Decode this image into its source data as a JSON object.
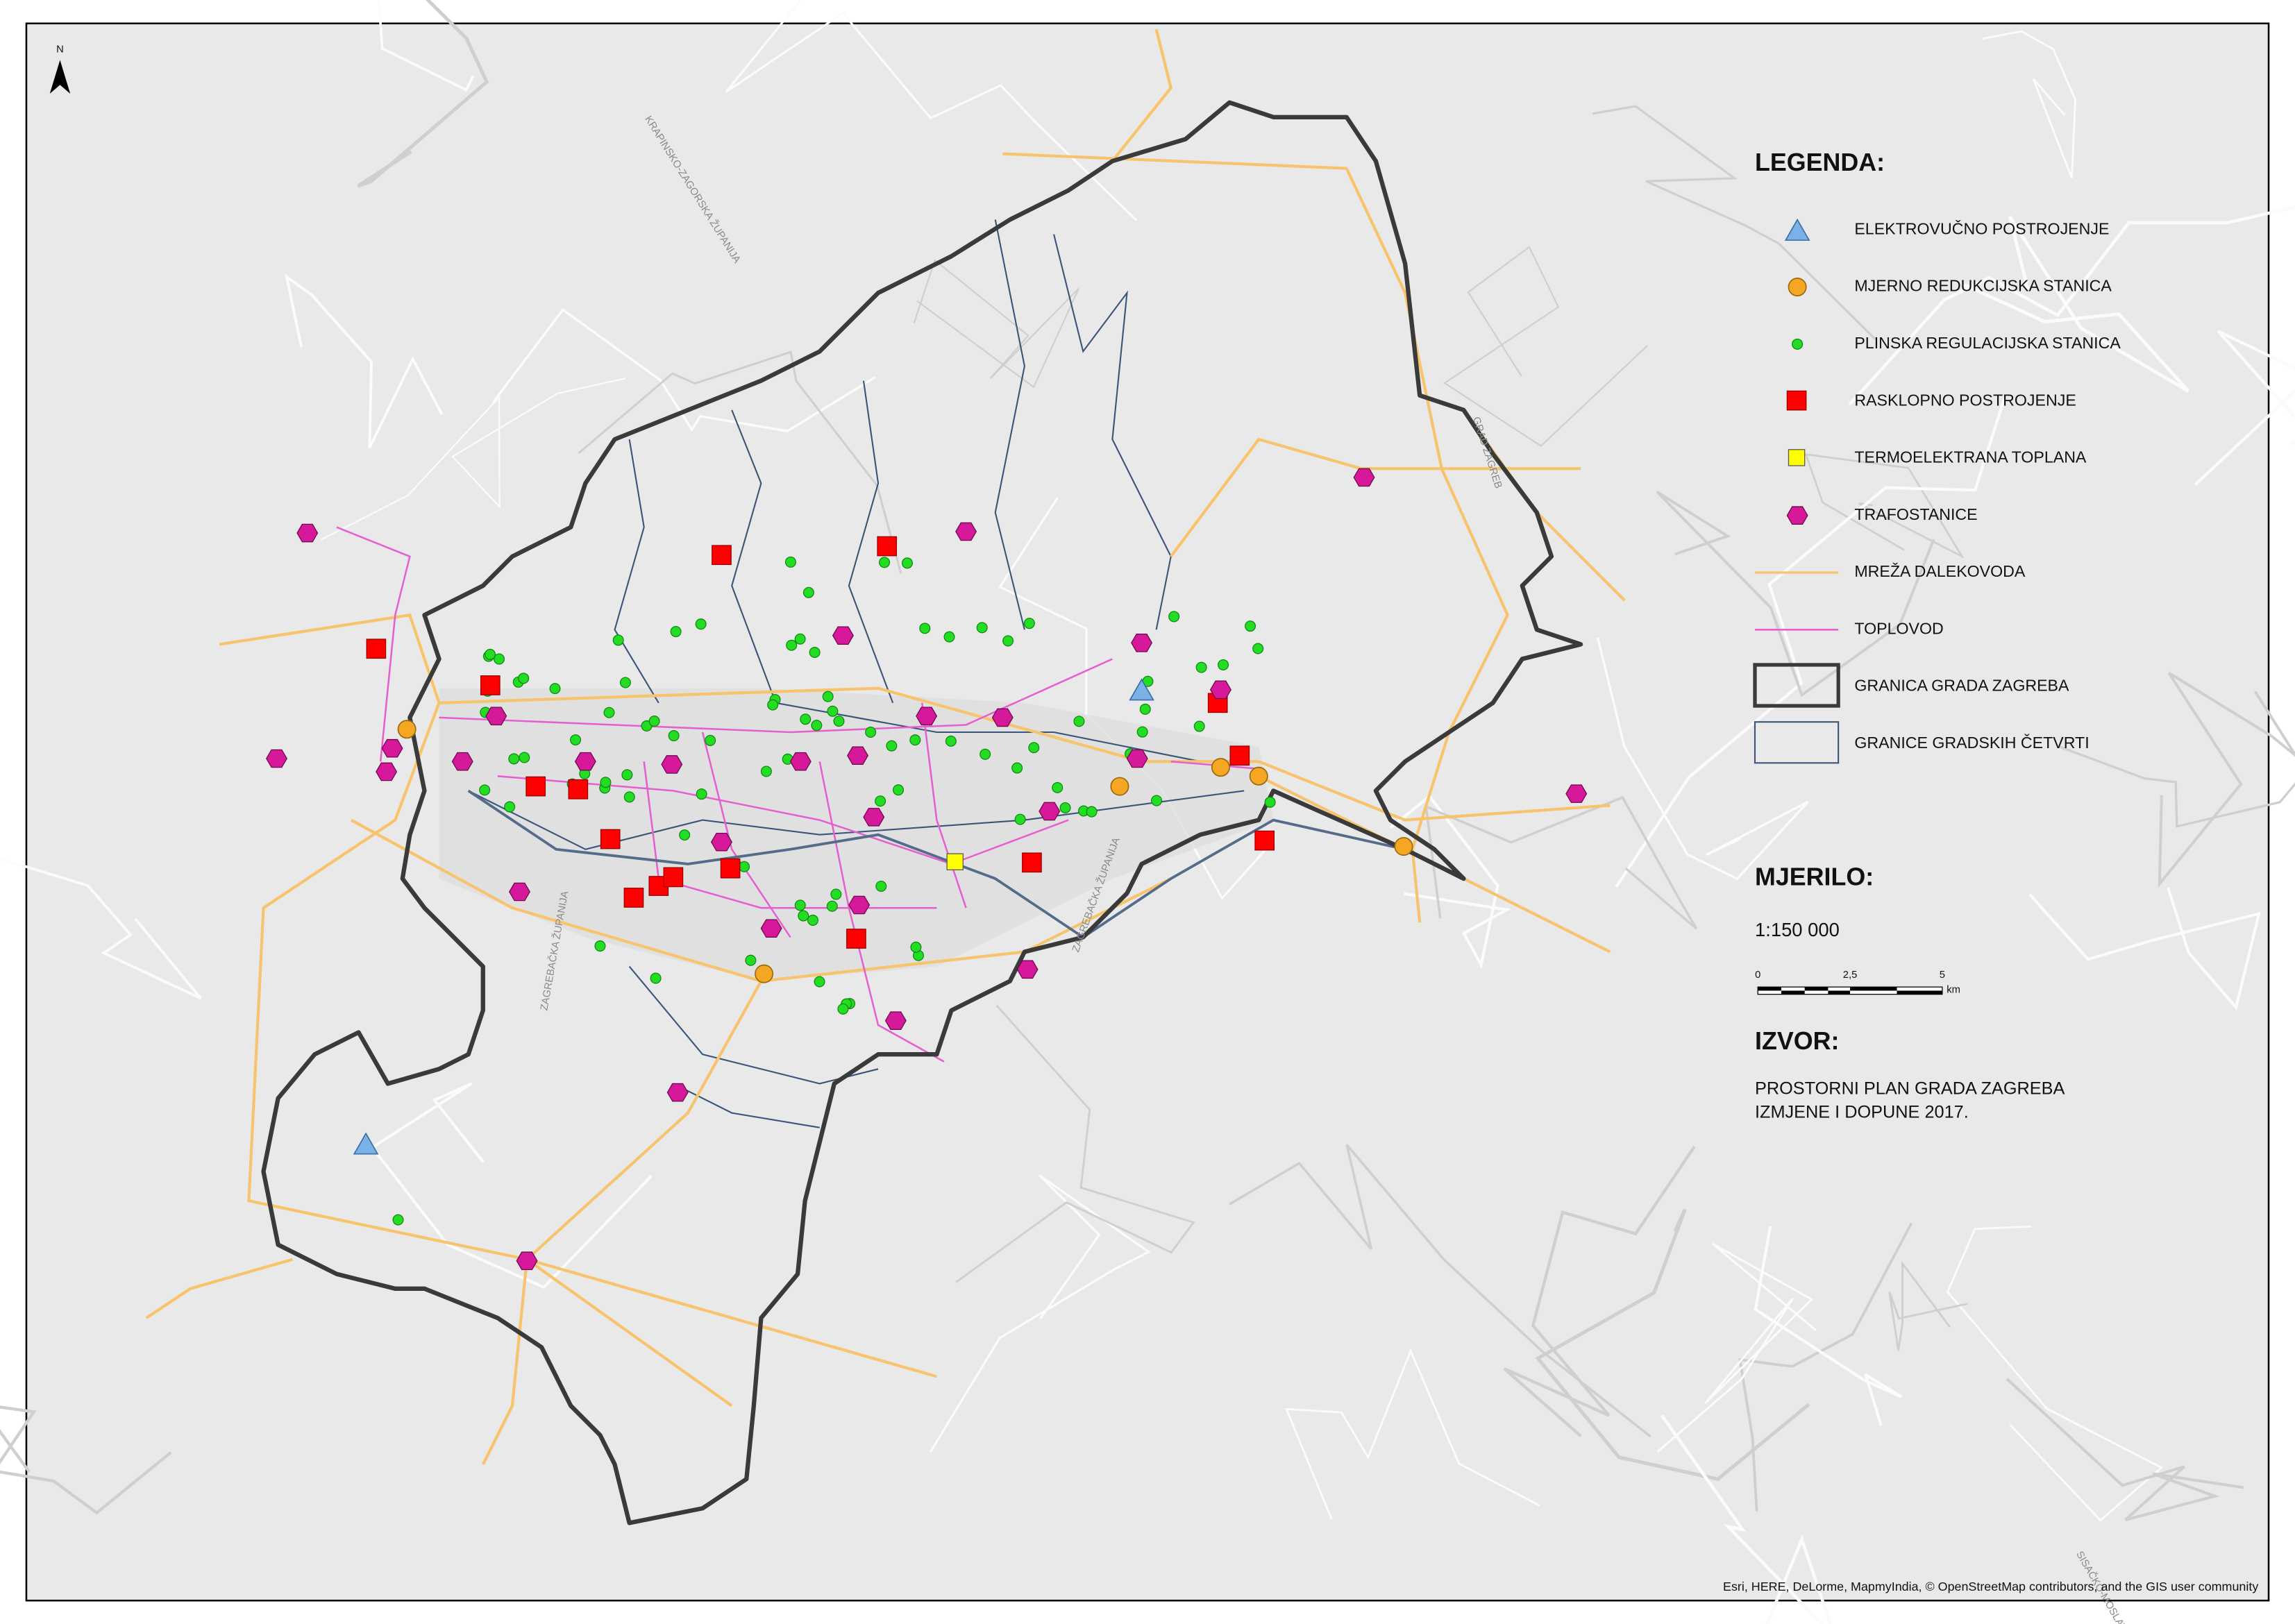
{
  "north_arrow": "N",
  "legend": {
    "title": "LEGENDA:",
    "items": [
      "ELEKTROVUČNO POSTROJENJE",
      "MJERNO REDUKCIJSKA STANICA",
      "PLINSKA REGULACIJSKA STANICA",
      "RASKLOPNO POSTROJENJE",
      "TERMOELEKTRANA TOPLANA",
      "TRAFOSTANICE",
      "MREŽA DALEKOVODA",
      "TOPLOVOD",
      "GRANICA GRADA ZAGREBA",
      "GRANICE GRADSKIH ČETVRTI"
    ]
  },
  "scale": {
    "title": "MJERILO:",
    "ratio": "1:150 000",
    "labels": [
      "0",
      "2,5",
      "5"
    ],
    "unit": "km"
  },
  "source": {
    "title": "IZVOR:",
    "lines": [
      "PROSTORNI PLAN GRADA ZAGREBA",
      "IZMJENE I DOPUNE 2017."
    ]
  },
  "map_labels": [
    "KRAPINSKO-ZAGORSKA ŽUPANIJA",
    "ZAGREBAČKA ŽUPANIJA",
    "GRAD ZAGREB",
    "ZAGREBAČKA ŽUPANIJA",
    "SISAČKO-MOSLAVAČKA ŽUPANIJA"
  ],
  "attribution": "Esri, HERE, DeLorme, MapmyIndia, © OpenStreetMap contributors, and the GIS user community"
}
